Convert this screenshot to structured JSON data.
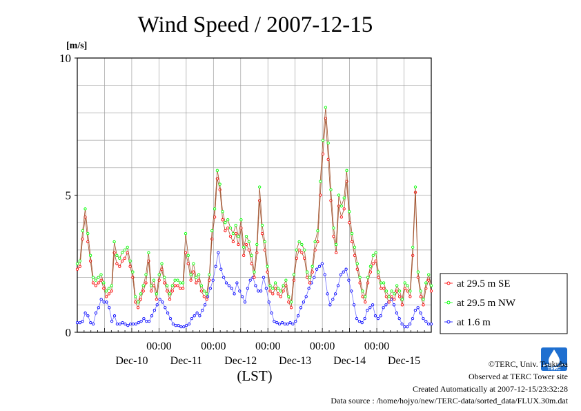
{
  "chart_data": {
    "type": "line",
    "title": "Wind Speed / 2007-12-15",
    "ylabel": "[m/s]",
    "xlabel": "(LST)",
    "ylim": [
      0,
      10
    ],
    "y_ticks": [
      "0",
      "5",
      "10"
    ],
    "x_range_days": [
      "Dec-09 12:00",
      "Dec-15 24:00"
    ],
    "x_time_ticks": [
      "00:00",
      "00:00",
      "00:00",
      "00:00",
      "00:00"
    ],
    "x_day_labels": [
      "Dec-10",
      "Dec-11",
      "Dec-12",
      "Dec-13",
      "Dec-14",
      "Dec-15"
    ],
    "grid": true,
    "legend_position": "right",
    "series": [
      {
        "name": "at 29.5 m SE",
        "color": "#ff0000",
        "x_start": "Dec-09 12:00",
        "interval_hours": 1,
        "values": [
          2.3,
          2.4,
          3.4,
          4.2,
          3.3,
          2.6,
          1.8,
          1.7,
          1.8,
          1.9,
          1.6,
          1.3,
          1.4,
          1.5,
          2.9,
          2.5,
          2.4,
          2.6,
          2.7,
          2.9,
          2.4,
          2.0,
          1.1,
          0.9,
          1.2,
          1.5,
          1.8,
          2.6,
          1.5,
          1.7,
          1.2,
          1.9,
          2.3,
          1.8,
          1.5,
          1.2,
          1.5,
          1.7,
          1.7,
          1.6,
          1.6,
          2.9,
          2.5,
          1.9,
          2.2,
          1.8,
          1.9,
          1.5,
          1.3,
          1.2,
          1.9,
          3.4,
          4.2,
          5.6,
          5.2,
          4.1,
          3.7,
          3.8,
          3.5,
          3.3,
          3.6,
          3.2,
          3.8,
          2.8,
          3.2,
          3.0,
          2.5,
          2.0,
          2.9,
          4.8,
          3.6,
          3.0,
          2.2,
          1.5,
          1.4,
          1.6,
          1.4,
          1.3,
          1.5,
          1.7,
          1.1,
          0.9,
          1.9,
          2.7,
          3.0,
          2.9,
          2.7,
          2.0,
          1.8,
          2.2,
          3.0,
          3.3,
          5.0,
          6.5,
          7.8,
          6.3,
          4.8,
          3.5,
          2.9,
          4.6,
          4.2,
          4.5,
          5.5,
          4.0,
          3.3,
          2.8,
          2.3,
          1.8,
          1.3,
          1.1,
          1.8,
          2.2,
          2.5,
          2.6,
          2.0,
          1.6,
          1.6,
          1.3,
          1.1,
          1.3,
          1.2,
          1.5,
          1.3,
          1.0,
          1.6,
          1.5,
          1.3,
          2.8,
          5.1,
          2.0,
          1.3,
          1.0,
          1.6,
          1.9,
          1.5
        ]
      },
      {
        "name": "at 29.5 m NW",
        "color": "#00ff00",
        "x_start": "Dec-09 12:00",
        "interval_hours": 1,
        "values": [
          2.5,
          2.6,
          3.7,
          4.5,
          3.6,
          2.8,
          2.0,
          1.9,
          2.0,
          2.1,
          1.8,
          1.5,
          1.6,
          1.7,
          3.3,
          2.8,
          2.7,
          2.9,
          3.0,
          3.1,
          2.6,
          2.2,
          1.3,
          1.1,
          1.4,
          1.7,
          2.1,
          2.9,
          1.7,
          1.9,
          1.4,
          2.1,
          2.5,
          2.0,
          1.7,
          1.4,
          1.7,
          1.9,
          1.9,
          1.8,
          1.8,
          3.6,
          2.8,
          2.1,
          2.5,
          2.0,
          2.1,
          1.7,
          1.5,
          1.4,
          2.1,
          3.7,
          4.5,
          5.9,
          5.4,
          4.4,
          4.0,
          4.1,
          3.8,
          3.6,
          3.9,
          3.5,
          4.1,
          3.1,
          3.5,
          3.3,
          2.8,
          2.2,
          3.2,
          5.3,
          3.9,
          3.3,
          2.4,
          1.7,
          1.6,
          1.8,
          1.6,
          1.5,
          1.7,
          1.9,
          1.3,
          1.1,
          2.1,
          3.0,
          3.3,
          3.2,
          3.0,
          2.2,
          2.0,
          2.4,
          3.3,
          3.7,
          5.5,
          7.0,
          8.2,
          6.9,
          5.2,
          3.8,
          3.2,
          5.0,
          4.6,
          4.9,
          5.9,
          4.4,
          3.6,
          3.1,
          2.5,
          2.0,
          1.5,
          1.3,
          2.0,
          2.4,
          2.8,
          2.9,
          2.2,
          1.8,
          1.8,
          1.5,
          1.3,
          1.5,
          1.4,
          1.7,
          1.5,
          1.2,
          1.8,
          1.7,
          1.5,
          3.1,
          5.3,
          2.2,
          1.5,
          1.2,
          1.8,
          2.1,
          1.7
        ]
      },
      {
        "name": "at 1.6 m",
        "color": "#0000ff",
        "x_start": "Dec-09 12:00",
        "interval_hours": 1,
        "values": [
          0.35,
          0.35,
          0.4,
          0.7,
          0.6,
          0.35,
          0.3,
          0.7,
          0.9,
          1.2,
          1.1,
          1.1,
          0.9,
          0.4,
          0.6,
          0.3,
          0.3,
          0.35,
          0.3,
          0.25,
          0.3,
          0.3,
          0.3,
          0.35,
          0.4,
          0.5,
          0.4,
          0.4,
          0.6,
          0.8,
          1.0,
          1.2,
          1.1,
          0.9,
          0.7,
          0.5,
          0.3,
          0.25,
          0.25,
          0.2,
          0.2,
          0.25,
          0.3,
          0.5,
          0.6,
          0.7,
          0.6,
          0.8,
          1.0,
          1.3,
          1.6,
          1.9,
          2.4,
          2.9,
          2.3,
          2.0,
          1.8,
          1.7,
          1.6,
          1.4,
          1.8,
          1.5,
          1.3,
          1.1,
          1.6,
          1.9,
          2.0,
          1.7,
          1.5,
          1.5,
          2.0,
          1.6,
          1.1,
          0.7,
          0.4,
          0.35,
          0.3,
          0.35,
          0.3,
          0.3,
          0.35,
          0.3,
          0.4,
          0.6,
          0.9,
          1.1,
          1.3,
          1.6,
          1.8,
          2.0,
          2.3,
          2.4,
          2.5,
          2.1,
          1.4,
          1.0,
          1.2,
          1.4,
          1.7,
          2.1,
          2.2,
          2.3,
          1.9,
          1.5,
          1.0,
          0.5,
          0.4,
          0.35,
          0.5,
          0.8,
          0.9,
          1.0,
          0.6,
          0.5,
          0.6,
          0.9,
          1.0,
          1.1,
          1.2,
          1.0,
          0.7,
          0.5,
          0.3,
          0.2,
          0.2,
          0.3,
          0.5,
          0.8,
          0.9,
          0.7,
          0.5,
          0.4,
          0.3,
          0.3
        ]
      }
    ]
  },
  "footer": {
    "copyright": "©TERC, Univ. Tsukuba",
    "observed": "Observed at TERC Tower site",
    "created": "Created Automatically at 2007-12-15/23:32:28",
    "source": "Data source : /home/hojyo/new/TERC-data/sorted_data/FLUX.30m.dat"
  },
  "logo": {
    "text": "TERC",
    "color": "#1e6fd0"
  }
}
